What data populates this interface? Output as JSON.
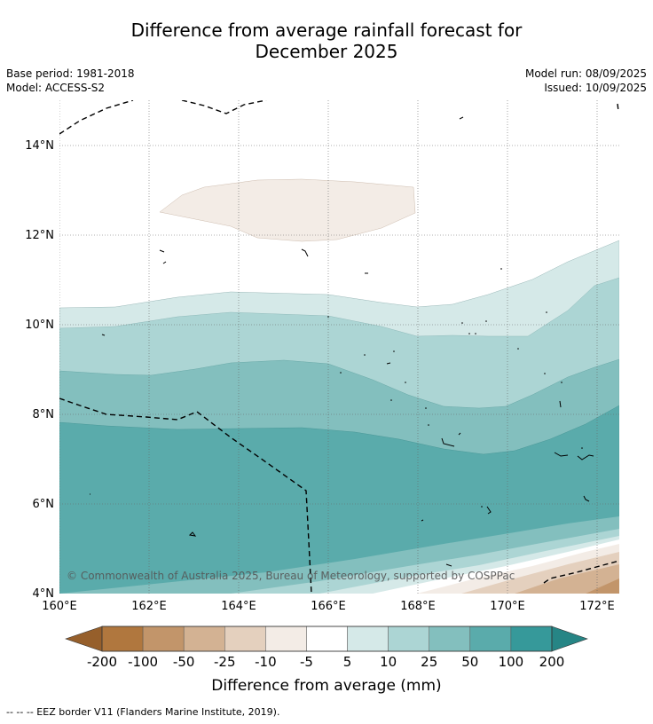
{
  "title_line1": "Difference from average rainfall forecast for",
  "title_line2": "December 2025",
  "meta_left": {
    "base_period": "Base period: 1981-2018",
    "model": "Model: ACCESS-S2"
  },
  "meta_right": {
    "model_run": "Model run: 08/09/2025",
    "issued": "Issued: 10/09/2025"
  },
  "map": {
    "lat_ticks": [
      "14°N",
      "12°N",
      "10°N",
      "8°N",
      "6°N",
      "4°N"
    ],
    "lon_ticks": [
      "160°E",
      "162°E",
      "164°E",
      "166°E",
      "168°E",
      "170°E",
      "172°E"
    ],
    "copyright": "© Commonwealth of Australia 2025, Bureau of Meteorology, supported by COSPPac"
  },
  "colorbar": {
    "label": "Difference from average (mm)",
    "ticks": [
      "-200",
      "-100",
      "-50",
      "-25",
      "-10",
      "-5",
      "5",
      "10",
      "25",
      "50",
      "100",
      "200"
    ],
    "colors": [
      "#965f2b",
      "#b0773e",
      "#c2956a",
      "#d3b293",
      "#e4d0be",
      "#f3ece6",
      "#ffffff",
      "#d5e9e8",
      "#acd5d4",
      "#83bfbe",
      "#5aabab",
      "#36999a",
      "#268585"
    ]
  },
  "footer": "-- -- -- EEZ border V11 (Flanders Marine Institute, 2019)."
}
